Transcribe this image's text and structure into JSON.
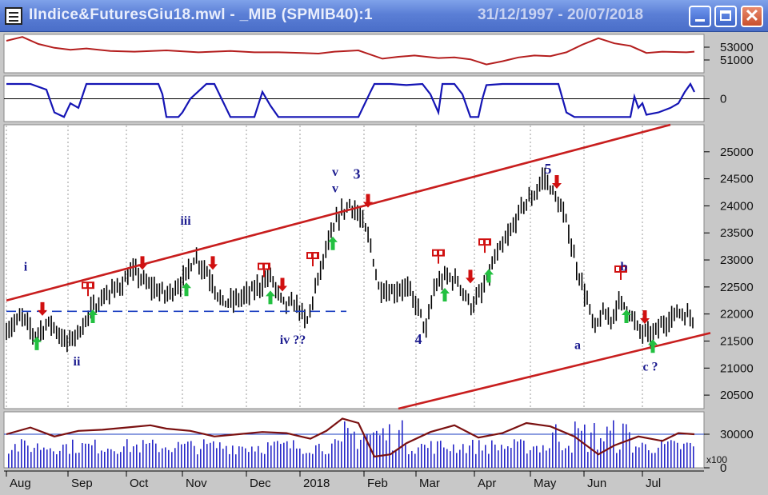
{
  "window": {
    "title": "IIndice&FuturesGiu18.mwl - _MIB (SPMIB40):1",
    "date_range": "31/12/1997 - 20/07/2018"
  },
  "colors": {
    "price": "#000000",
    "channel": "#c81e1e",
    "indicator_top": "#b41e1e",
    "oscillator": "#1414b4",
    "volume": "#2828c8",
    "buy_arrow": "#22c040",
    "sell_arrow": "#d01010",
    "wave_labels": "#1b1b8f"
  },
  "chart_data": [
    {
      "panel": "indicator",
      "type": "line",
      "y_ticks": [
        "53000",
        "51000"
      ],
      "ylim": [
        49000,
        55000
      ],
      "x": [
        0,
        20,
        40,
        60,
        80,
        100,
        130,
        160,
        200,
        240,
        280,
        310,
        340,
        370,
        390,
        410,
        440,
        470,
        490,
        510,
        540,
        560,
        580,
        600,
        620,
        640,
        660,
        680,
        700,
        720,
        740,
        760,
        780,
        800,
        820,
        850,
        860
      ],
      "values": [
        54000,
        54600,
        53500,
        52900,
        52600,
        52800,
        52400,
        52300,
        52500,
        52200,
        52400,
        52200,
        52200,
        52100,
        52000,
        52300,
        52500,
        51200,
        51500,
        51700,
        51300,
        51400,
        51100,
        50300,
        50800,
        51400,
        51700,
        51600,
        52200,
        53400,
        54400,
        53600,
        53200,
        52100,
        52300,
        52200,
        52300
      ]
    },
    {
      "panel": "oscillator",
      "type": "line",
      "y_ticks": [
        "0"
      ],
      "ylim": [
        -100,
        100
      ],
      "x": [
        0,
        8,
        30,
        50,
        60,
        72,
        80,
        90,
        100,
        150,
        190,
        195,
        200,
        210,
        215,
        220,
        230,
        250,
        260,
        280,
        310,
        320,
        330,
        340,
        380,
        420,
        440,
        455,
        460,
        480,
        500,
        520,
        530,
        540,
        545,
        560,
        570,
        580,
        590,
        595,
        600,
        620,
        690,
        700,
        710,
        730,
        780,
        785,
        790,
        795,
        800,
        815,
        830,
        840,
        848,
        855,
        860
      ],
      "values": [
        65,
        65,
        65,
        40,
        -60,
        -80,
        -20,
        -40,
        65,
        65,
        65,
        20,
        -80,
        -80,
        -80,
        -60,
        0,
        65,
        65,
        -80,
        -80,
        30,
        -30,
        -80,
        -80,
        -80,
        -80,
        30,
        65,
        65,
        60,
        65,
        20,
        -60,
        65,
        65,
        20,
        -80,
        -80,
        0,
        60,
        65,
        65,
        -60,
        -80,
        -80,
        -80,
        10,
        -40,
        -20,
        -70,
        -60,
        -40,
        -20,
        30,
        65,
        30
      ]
    },
    {
      "panel": "price",
      "type": "candlestick",
      "y_ticks": [
        "25000",
        "24500",
        "24000",
        "23500",
        "23000",
        "22500",
        "22000",
        "21500",
        "21000",
        "20500"
      ],
      "ylim": [
        20250,
        25500
      ],
      "x_months": [
        "Aug",
        "Sep",
        "Oct",
        "Nov",
        "Dec",
        "2018",
        "Feb",
        "Mar",
        "Apr",
        "May",
        "Jun",
        "Jul"
      ],
      "price_path": [
        [
          0,
          21700
        ],
        [
          20,
          21950
        ],
        [
          35,
          21600
        ],
        [
          55,
          21850
        ],
        [
          75,
          21450
        ],
        [
          95,
          21750
        ],
        [
          105,
          22050
        ],
        [
          120,
          22300
        ],
        [
          140,
          22500
        ],
        [
          160,
          22800
        ],
        [
          175,
          22550
        ],
        [
          200,
          22350
        ],
        [
          220,
          22600
        ],
        [
          235,
          23050
        ],
        [
          250,
          22800
        ],
        [
          270,
          22200
        ],
        [
          285,
          22250
        ],
        [
          300,
          22350
        ],
        [
          315,
          22500
        ],
        [
          330,
          22700
        ],
        [
          345,
          22200
        ],
        [
          365,
          22150
        ],
        [
          375,
          21800
        ],
        [
          385,
          22400
        ],
        [
          400,
          23200
        ],
        [
          415,
          23800
        ],
        [
          430,
          24050
        ],
        [
          445,
          23700
        ],
        [
          455,
          23300
        ],
        [
          465,
          22500
        ],
        [
          480,
          22400
        ],
        [
          500,
          22500
        ],
        [
          515,
          22100
        ],
        [
          525,
          21700
        ],
        [
          535,
          22500
        ],
        [
          550,
          22700
        ],
        [
          565,
          22600
        ],
        [
          580,
          22150
        ],
        [
          595,
          22400
        ],
        [
          610,
          23000
        ],
        [
          630,
          23500
        ],
        [
          645,
          24000
        ],
        [
          660,
          24200
        ],
        [
          672,
          24550
        ],
        [
          685,
          24200
        ],
        [
          700,
          23700
        ],
        [
          712,
          22900
        ],
        [
          725,
          22300
        ],
        [
          735,
          21700
        ],
        [
          745,
          22000
        ],
        [
          755,
          21900
        ],
        [
          765,
          22200
        ],
        [
          775,
          22150
        ],
        [
          790,
          21700
        ],
        [
          805,
          21600
        ],
        [
          820,
          21800
        ],
        [
          840,
          22050
        ],
        [
          860,
          21900
        ]
      ],
      "series": [
        {
          "name": "channel-upper",
          "points": [
            [
              0,
              22250
            ],
            [
              830,
              25500
            ]
          ]
        },
        {
          "name": "channel-lower",
          "points": [
            [
              490,
              20250
            ],
            [
              880,
              21650
            ]
          ]
        },
        {
          "name": "support-dashed",
          "points": [
            [
              0,
              22050
            ],
            [
              425,
              22050
            ]
          ]
        }
      ],
      "wave_labels": [
        {
          "text": "i",
          "x": 24,
          "price": 22800
        },
        {
          "text": "ii",
          "x": 88,
          "price": 21050
        },
        {
          "text": "iii",
          "x": 224,
          "price": 23650
        },
        {
          "text": "iv ??",
          "x": 358,
          "price": 21450
        },
        {
          "text": "v",
          "x": 411,
          "price": 24550
        },
        {
          "text": "v",
          "x": 411,
          "price": 24250
        },
        {
          "text": "3",
          "x": 438,
          "price": 24500
        },
        {
          "text": "4",
          "x": 515,
          "price": 21450
        },
        {
          "text": "5",
          "x": 677,
          "price": 24600
        },
        {
          "text": "a",
          "x": 714,
          "price": 21350
        },
        {
          "text": "b",
          "x": 772,
          "price": 22800
        },
        {
          "text": "c ?",
          "x": 805,
          "price": 20950
        }
      ],
      "buy_arrows": [
        [
          38,
          21450
        ],
        [
          108,
          21950
        ],
        [
          225,
          22450
        ],
        [
          330,
          22300
        ],
        [
          408,
          23300
        ],
        [
          548,
          22350
        ],
        [
          603,
          22700
        ],
        [
          775,
          21950
        ],
        [
          808,
          21400
        ]
      ],
      "sell_arrows": [
        [
          45,
          22100
        ],
        [
          170,
          22950
        ],
        [
          258,
          22950
        ],
        [
          345,
          22550
        ],
        [
          452,
          24100
        ],
        [
          580,
          22700
        ],
        [
          688,
          24450
        ],
        [
          798,
          21950
        ]
      ],
      "flags": [
        [
          102,
          22450
        ],
        [
          322,
          22800
        ],
        [
          383,
          23000
        ],
        [
          540,
          23050
        ],
        [
          598,
          23250
        ],
        [
          768,
          22750
        ]
      ]
    },
    {
      "panel": "volume",
      "type": "bar",
      "y_ticks": [
        "30000",
        "0"
      ],
      "y_unit": "x100",
      "ylim": [
        0,
        50000
      ],
      "overlay_line_x": [
        0,
        30,
        60,
        90,
        120,
        150,
        180,
        200,
        230,
        260,
        290,
        320,
        350,
        380,
        400,
        420,
        440,
        460,
        480,
        500,
        530,
        560,
        590,
        620,
        650,
        680,
        710,
        740,
        760,
        790,
        820,
        840,
        860
      ],
      "overlay_line_values": [
        30000,
        36000,
        28000,
        33000,
        34000,
        36000,
        38000,
        35000,
        33000,
        28000,
        30000,
        32000,
        31000,
        26000,
        33000,
        44000,
        40000,
        10000,
        12000,
        22000,
        32000,
        38000,
        27000,
        31000,
        40000,
        37000,
        28000,
        12000,
        20000,
        28000,
        24000,
        31000,
        30000
      ],
      "reference_line": 30000
    }
  ]
}
